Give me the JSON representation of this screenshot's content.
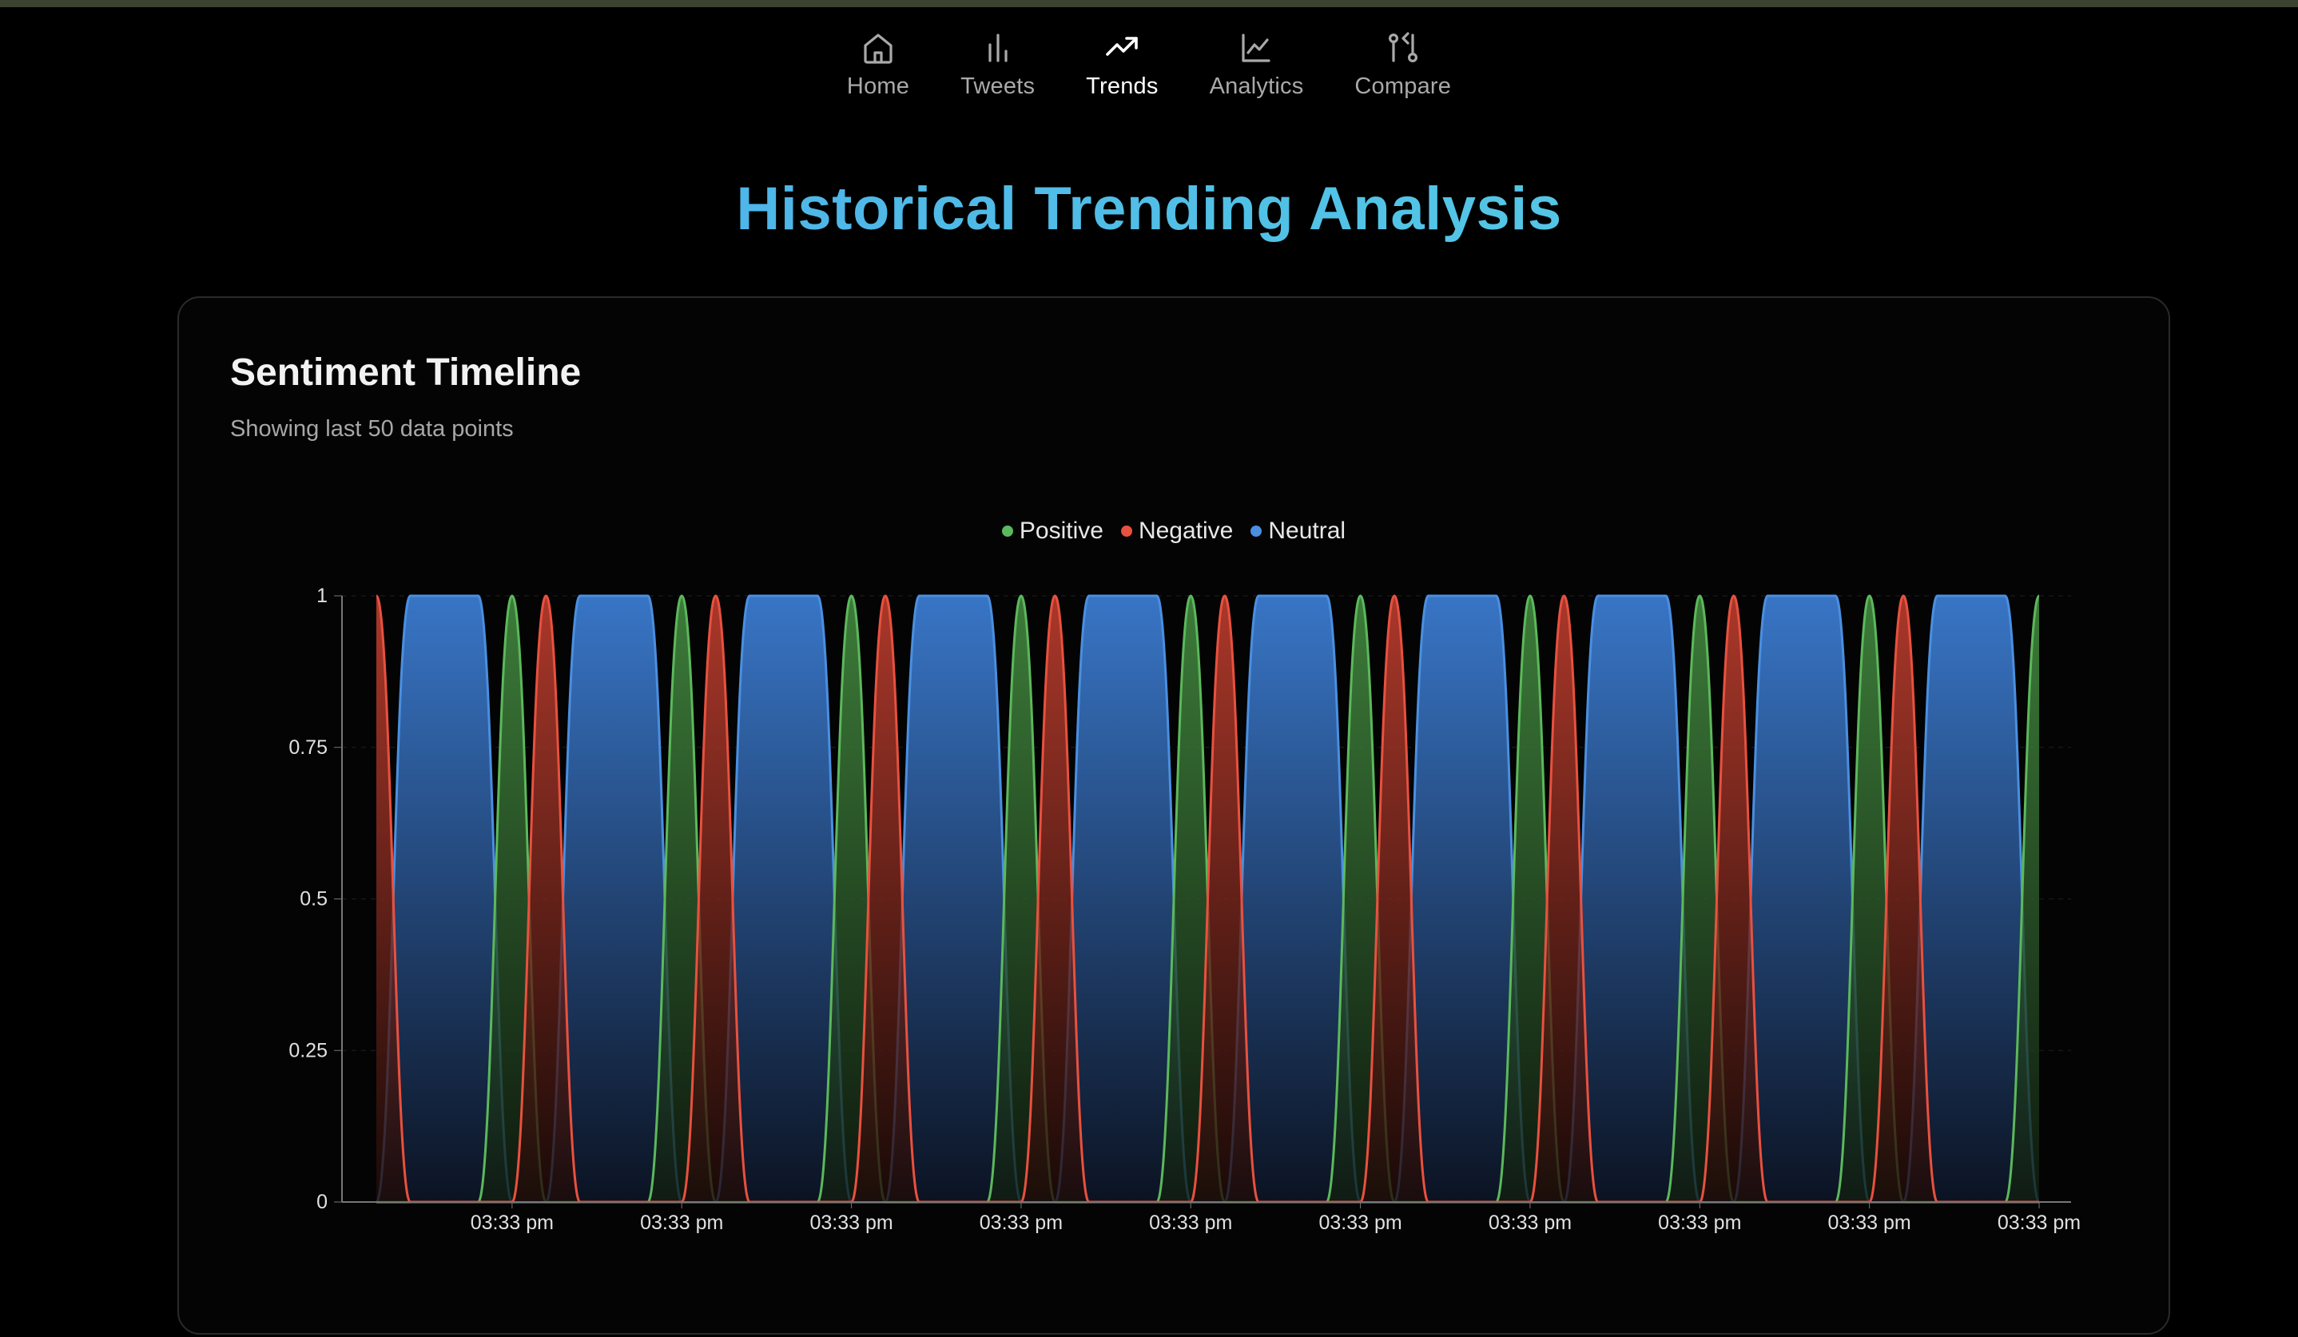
{
  "nav": {
    "items": [
      {
        "label": "Home",
        "icon": "home-icon",
        "active": false
      },
      {
        "label": "Tweets",
        "icon": "bar-chart-icon",
        "active": false
      },
      {
        "label": "Trends",
        "icon": "trending-up-icon",
        "active": true
      },
      {
        "label": "Analytics",
        "icon": "line-chart-icon",
        "active": false
      },
      {
        "label": "Compare",
        "icon": "git-compare-icon",
        "active": false
      }
    ]
  },
  "page": {
    "title": "Historical Trending Analysis"
  },
  "card": {
    "title": "Sentiment Timeline",
    "subtitle": "Showing last 50 data points"
  },
  "colors": {
    "positive": "#5cb85c",
    "negative": "#e8513f",
    "neutral": "#4a8fe0",
    "active_nav": "#ffffff",
    "inactive_nav": "#a9a9a9"
  },
  "chart_data": {
    "type": "area",
    "legend_position": "top-center",
    "grid": true,
    "ylim": [
      0,
      1
    ],
    "y_ticks": [
      "0",
      "0.25",
      "0.5",
      "0.75",
      "1"
    ],
    "x_ticks": [
      "03:33 pm",
      "03:33 pm",
      "03:33 pm",
      "03:33 pm",
      "03:33 pm",
      "03:33 pm",
      "03:33 pm",
      "03:33 pm",
      "03:33 pm",
      "03:33 pm"
    ],
    "series": [
      {
        "name": "Positive",
        "values": [
          0,
          0,
          0,
          0,
          1,
          0,
          0,
          0,
          0,
          1,
          0,
          0,
          0,
          0,
          1,
          0,
          0,
          0,
          0,
          1,
          0,
          0,
          0,
          0,
          1,
          0,
          0,
          0,
          0,
          1,
          0,
          0,
          0,
          0,
          1,
          0,
          0,
          0,
          0,
          1,
          0,
          0,
          0,
          0,
          1,
          0,
          0,
          0,
          0,
          1
        ]
      },
      {
        "name": "Negative",
        "values": [
          1,
          0,
          0,
          0,
          0,
          1,
          0,
          0,
          0,
          0,
          1,
          0,
          0,
          0,
          0,
          1,
          0,
          0,
          0,
          0,
          1,
          0,
          0,
          0,
          0,
          1,
          0,
          0,
          0,
          0,
          1,
          0,
          0,
          0,
          0,
          1,
          0,
          0,
          0,
          0,
          1,
          0,
          0,
          0,
          0,
          1,
          0,
          0,
          0,
          0
        ]
      },
      {
        "name": "Neutral",
        "values": [
          0,
          1,
          1,
          1,
          0,
          0,
          1,
          1,
          1,
          0,
          0,
          1,
          1,
          1,
          0,
          0,
          1,
          1,
          1,
          0,
          0,
          1,
          1,
          1,
          0,
          0,
          1,
          1,
          1,
          0,
          0,
          1,
          1,
          1,
          0,
          0,
          1,
          1,
          1,
          0,
          0,
          1,
          1,
          1,
          0,
          0,
          1,
          1,
          1,
          0
        ]
      }
    ]
  }
}
